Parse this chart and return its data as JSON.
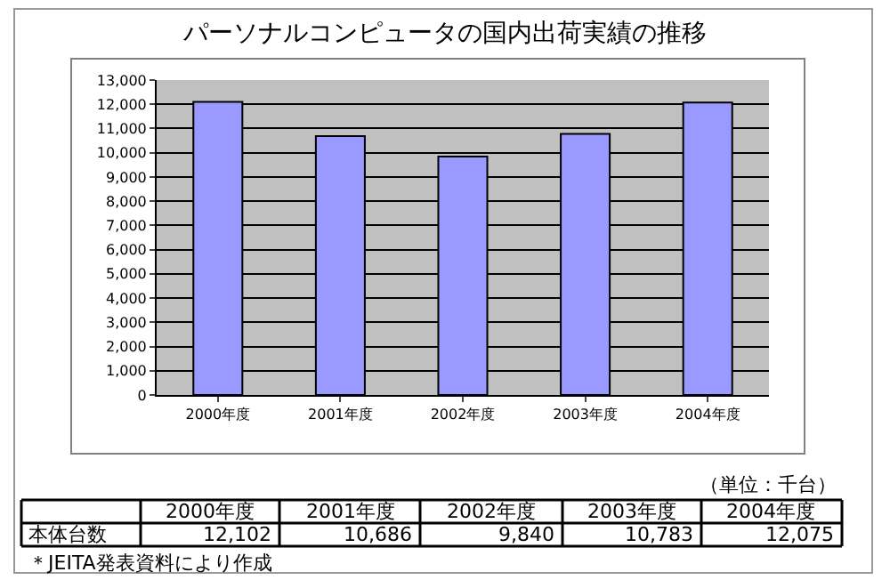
{
  "chart_data": {
    "type": "bar",
    "title": "パーソナルコンピュータの国内出荷実績の推移",
    "categories": [
      "2000年度",
      "2001年度",
      "2002年度",
      "2003年度",
      "2004年度"
    ],
    "values": [
      12102,
      10686,
      9840,
      10783,
      12075
    ],
    "value_labels": [
      "12,102",
      "10,686",
      "9,840",
      "10,783",
      "12,075"
    ],
    "color": "#9999ff",
    "ylim": [
      0,
      13000
    ],
    "yticks": [
      {
        "value": 0,
        "label": "0"
      },
      {
        "value": 1000,
        "label": "1,000"
      },
      {
        "value": 2000,
        "label": "2,000"
      },
      {
        "value": 3000,
        "label": "3,000"
      },
      {
        "value": 4000,
        "label": "4,000"
      },
      {
        "value": 5000,
        "label": "5,000"
      },
      {
        "value": 6000,
        "label": "6,000"
      },
      {
        "value": 7000,
        "label": "7,000"
      },
      {
        "value": 8000,
        "label": "8,000"
      },
      {
        "value": 9000,
        "label": "9,000"
      },
      {
        "value": 10000,
        "label": "10,000"
      },
      {
        "value": 11000,
        "label": "11,000"
      },
      {
        "value": 12000,
        "label": "12,000"
      },
      {
        "value": 13000,
        "label": "13,000"
      }
    ],
    "grid": "y",
    "annotations": [
      "（単位：千台）",
      "本体台数",
      "＊JEITA発表資料により作成"
    ]
  }
}
